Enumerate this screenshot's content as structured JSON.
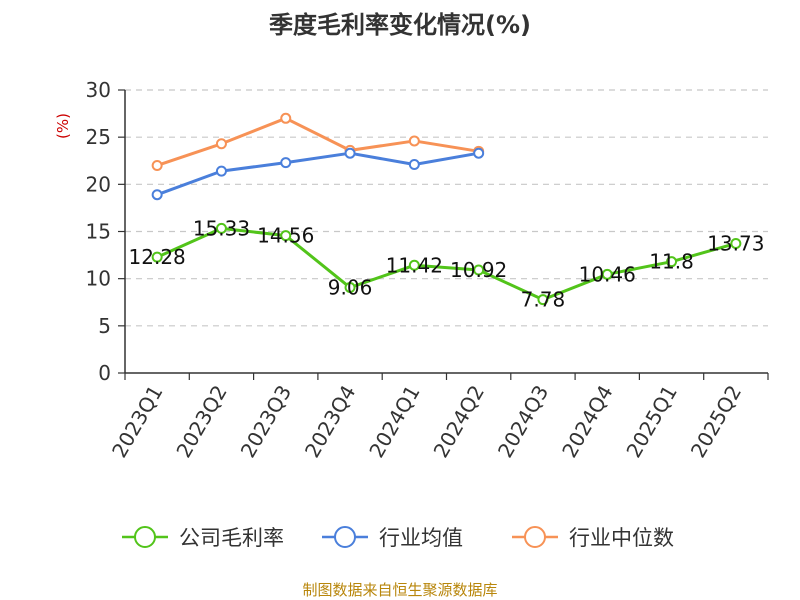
{
  "chart_data": {
    "type": "line",
    "title": "季度毛利率变化情况(%)",
    "ylabel": "(%)",
    "xlabel": "",
    "categories": [
      "2023Q1",
      "2023Q2",
      "2023Q3",
      "2023Q4",
      "2024Q1",
      "2024Q2",
      "2024Q3",
      "2024Q4",
      "2025Q1",
      "2025Q2"
    ],
    "ylim": [
      0,
      30
    ],
    "yticks": [
      0,
      5,
      10,
      15,
      20,
      25,
      30
    ],
    "grid": "horizontal-dashed",
    "legend_position": "bottom",
    "series": [
      {
        "name": "公司毛利率",
        "color": "#52c41a",
        "show_labels": true,
        "values": [
          12.28,
          15.33,
          14.56,
          9.06,
          11.42,
          10.92,
          7.78,
          10.46,
          11.8,
          13.73
        ]
      },
      {
        "name": "行业均值",
        "color": "#4a7fdb",
        "show_labels": false,
        "values": [
          18.9,
          21.4,
          22.3,
          23.3,
          22.1,
          23.3,
          null,
          null,
          null,
          null
        ]
      },
      {
        "name": "行业中位数",
        "color": "#f79256",
        "show_labels": false,
        "values": [
          22.0,
          24.3,
          27.0,
          23.6,
          24.6,
          23.5,
          null,
          null,
          null,
          null
        ]
      }
    ],
    "source": "制图数据来自恒生聚源数据库"
  }
}
